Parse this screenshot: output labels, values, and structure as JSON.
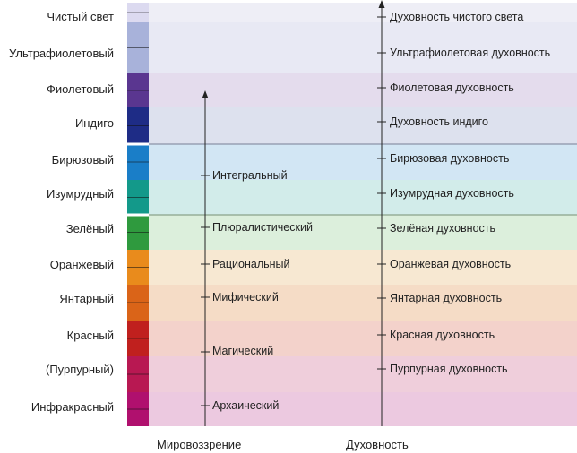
{
  "levels": [
    {
      "name": "Чистый свет",
      "strip": "#dcdaf0",
      "band": "#eeeef6"
    },
    {
      "name": "Ультрафиолетовый",
      "strip": "#a8b2da",
      "band": "#e8e9f4"
    },
    {
      "name": "Фиолетовый",
      "strip": "#5a3690",
      "band": "#e4dced"
    },
    {
      "name": "Индиго",
      "strip": "#1e2c86",
      "band": "#dde1ee"
    },
    {
      "name": "Бирюзовый",
      "strip": "#1a7ec8",
      "band": "#d2e6f4"
    },
    {
      "name": "Изумрудный",
      "strip": "#13998a",
      "band": "#d2ecea"
    },
    {
      "name": "Зелёный",
      "strip": "#2f9a3e",
      "band": "#dcefdc"
    },
    {
      "name": "Оранжевый",
      "strip": "#e98b1c",
      "band": "#f7e8d2"
    },
    {
      "name": "Янтарный",
      "strip": "#da6418",
      "band": "#f5dcc6"
    },
    {
      "name": "Красный",
      "strip": "#c0201e",
      "band": "#f3d2cb"
    },
    {
      "name": "(Пурпурный)",
      "strip": "#b81852",
      "band": "#efcedb"
    },
    {
      "name": "Инфракрасный",
      "strip": "#b0106e",
      "band": "#ecc9e0"
    }
  ],
  "worldviews": [
    "Архаический",
    "Магический",
    "Мифический",
    "Рациональный",
    "Плюралистический",
    "Интегральный"
  ],
  "spirituality": [
    "Пурпурная духовность",
    "Красная духовность",
    "Янтарная духовность",
    "Оранжевая духовность",
    "Зелёная духовность",
    "Изумрудная духовность",
    "Бирюзовая духовность",
    "Духовность индиго",
    "Фиолетовая духовность",
    "Ультрафиолетовая духовность",
    "Духовность чистого света"
  ],
  "axes": {
    "worldview": "Мировоззрение",
    "spirituality": "Духовность"
  }
}
